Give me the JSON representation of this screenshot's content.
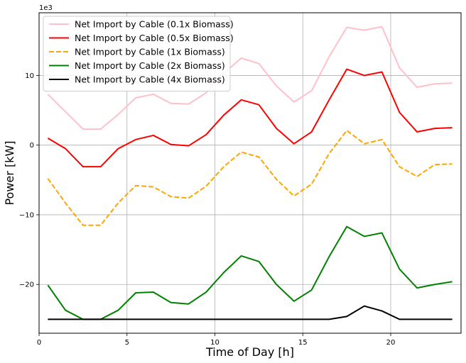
{
  "chart_data": {
    "type": "line",
    "xlabel": "Time of Day [h]",
    "ylabel": "Power [kW]",
    "y_offset_label": "1e3",
    "xlim": [
      0,
      24
    ],
    "ylim": [
      -27.0,
      19.0
    ],
    "x_ticks": [
      0,
      5,
      10,
      15,
      20
    ],
    "y_ticks": [
      -20,
      -10,
      0,
      10
    ],
    "y_tick_labels": [
      "−20",
      "−10",
      "0",
      "10"
    ],
    "grid": true,
    "legend_position": "upper-left",
    "x": [
      0.5,
      1.5,
      2.5,
      3.5,
      4.5,
      5.5,
      6.5,
      7.5,
      8.5,
      9.5,
      10.5,
      11.5,
      12.5,
      13.5,
      14.5,
      15.5,
      16.5,
      17.5,
      18.5,
      19.5,
      20.5,
      21.5,
      22.5,
      23.5
    ],
    "series": [
      {
        "name": "Net Import by Cable (0.1x Biomass)",
        "color": "#ffc0cb",
        "dash": "solid",
        "values": [
          7.3,
          4.8,
          2.3,
          2.3,
          4.4,
          6.8,
          7.3,
          6.0,
          5.9,
          7.5,
          10.3,
          12.5,
          11.7,
          8.5,
          6.2,
          7.8,
          12.7,
          16.9,
          16.5,
          17.0,
          11.1,
          8.3,
          8.8,
          8.9
        ]
      },
      {
        "name": "Net Import by Cable (0.5x Biomass)",
        "color": "#ff0000",
        "dash": "solid",
        "values": [
          1.0,
          -0.5,
          -3.1,
          -3.1,
          -0.5,
          0.8,
          1.4,
          0.1,
          -0.1,
          1.5,
          4.3,
          6.5,
          5.8,
          2.4,
          0.2,
          1.9,
          6.5,
          10.9,
          10.0,
          10.5,
          4.7,
          1.9,
          2.4,
          2.5
        ]
      },
      {
        "name": "Net Import by Cable (1x Biomass)",
        "color": "#ffa500",
        "dash": "dashed",
        "values": [
          -4.8,
          -8.3,
          -11.5,
          -11.5,
          -8.3,
          -5.8,
          -6.0,
          -7.4,
          -7.6,
          -5.9,
          -3.1,
          -1.0,
          -1.7,
          -4.9,
          -7.3,
          -5.6,
          -1.2,
          2.1,
          0.2,
          0.8,
          -3.1,
          -4.5,
          -2.8,
          -2.7
        ]
      },
      {
        "name": "Net Import by Cable (2x Biomass)",
        "color": "#008000",
        "dash": "solid",
        "values": [
          -20.1,
          -23.7,
          -25.0,
          -25.0,
          -23.7,
          -21.2,
          -21.1,
          -22.6,
          -22.8,
          -21.1,
          -18.3,
          -15.9,
          -16.7,
          -20.0,
          -22.4,
          -20.8,
          -16.0,
          -11.7,
          -13.1,
          -12.6,
          -17.8,
          -20.5,
          -20.0,
          -19.6
        ]
      },
      {
        "name": "Net Import by Cable (4x Biomass)",
        "color": "#000000",
        "dash": "solid",
        "values": [
          -25.0,
          -25.0,
          -25.0,
          -25.0,
          -25.0,
          -25.0,
          -25.0,
          -25.0,
          -25.0,
          -25.0,
          -25.0,
          -25.0,
          -25.0,
          -25.0,
          -25.0,
          -25.0,
          -25.0,
          -24.6,
          -23.1,
          -23.8,
          -25.0,
          -25.0,
          -25.0,
          -25.0
        ]
      }
    ]
  }
}
